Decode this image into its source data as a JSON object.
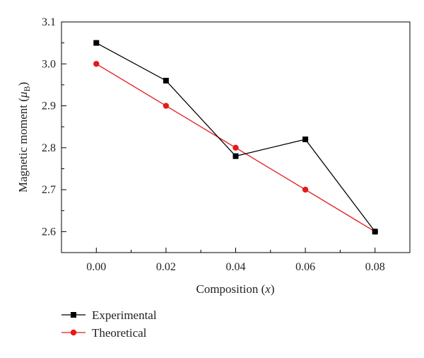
{
  "chart_data": {
    "type": "line",
    "title": "",
    "xlabel": {
      "main": "Composition (",
      "var": "x",
      "tail": ")"
    },
    "ylabel": {
      "main": "Magnetic moment (",
      "var": "μ",
      "sub": "B",
      "tail": ")"
    },
    "xlim": [
      -0.01,
      0.09
    ],
    "ylim": [
      2.55,
      3.1
    ],
    "x_ticks": [
      0.0,
      0.02,
      0.04,
      0.06,
      0.08
    ],
    "x_tick_labels": [
      "0.00",
      "0.02",
      "0.04",
      "0.06",
      "0.08"
    ],
    "y_ticks": [
      2.6,
      2.7,
      2.8,
      2.9,
      3.0,
      3.1
    ],
    "y_tick_labels": [
      "2.6",
      "2.7",
      "2.8",
      "2.9",
      "3.0",
      "3.1"
    ],
    "grid": false,
    "legend_position": "bottom-left-outside",
    "series": [
      {
        "name": "Experimental",
        "color": "#000000",
        "marker": "square",
        "x": [
          0.0,
          0.02,
          0.04,
          0.06,
          0.08
        ],
        "y": [
          3.05,
          2.96,
          2.78,
          2.82,
          2.6
        ]
      },
      {
        "name": "Theoretical",
        "color": "#e41a1c",
        "marker": "circle",
        "x": [
          0.0,
          0.02,
          0.04,
          0.06,
          0.08
        ],
        "y": [
          3.0,
          2.9,
          2.8,
          2.7,
          2.6
        ]
      }
    ]
  }
}
